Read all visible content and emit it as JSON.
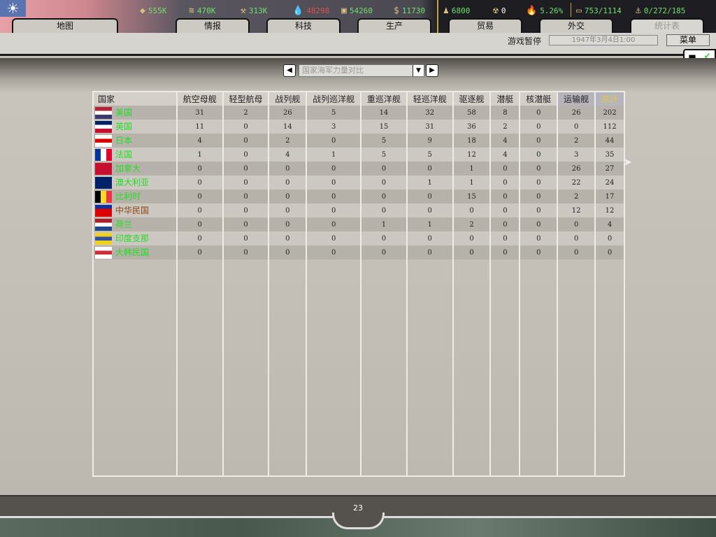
{
  "resources": [
    {
      "icon": "energy-icon",
      "value": "555K",
      "color": "#6ee06e"
    },
    {
      "icon": "metal-icon",
      "value": "470K",
      "color": "#6ee06e"
    },
    {
      "icon": "rare-materials-icon",
      "value": "313K",
      "color": "#6ee06e"
    },
    {
      "icon": "oil-icon",
      "value": "48298",
      "color": "#e05050"
    },
    {
      "icon": "supplies-icon",
      "value": "54260",
      "color": "#6ee06e"
    },
    {
      "icon": "money-icon",
      "value": "11730",
      "color": "#6ee06e"
    },
    {
      "icon": "manpower-icon",
      "value": "6800",
      "color": "#6ee06e"
    },
    {
      "icon": "nuclear-icon",
      "value": "0",
      "color": "#ffffff"
    },
    {
      "icon": "dissent-icon",
      "value": "5.26%",
      "color": "#6ee06e"
    },
    {
      "icon": "transport-icon",
      "value": "753/1114",
      "color": "#6ee06e"
    },
    {
      "icon": "convoy-icon",
      "value": "0/272/185",
      "color": "#6ee06e"
    }
  ],
  "tabs": [
    {
      "label": "地图"
    },
    {
      "label": "情报"
    },
    {
      "label": "科技"
    },
    {
      "label": "生产"
    },
    {
      "label": "贸易"
    },
    {
      "label": "外交"
    },
    {
      "label": "统计表",
      "active": true
    }
  ],
  "status": {
    "paused": "游戏暂停",
    "date": "1947年3月4日1:00",
    "menu": "菜单"
  },
  "selector": {
    "value": "国家海军力量对比"
  },
  "table": {
    "headers": [
      "国家",
      "航空母舰",
      "轻型航母",
      "战列舰",
      "战列巡洋舰",
      "重巡洋舰",
      "轻巡洋舰",
      "驱逐舰",
      "潜艇",
      "核潜艇",
      "运输舰",
      "总计"
    ],
    "rows": [
      {
        "country": "美国",
        "flag": [
          "#b22234",
          "#fff",
          "#3c3b6e"
        ],
        "color": "#22dd22",
        "values": [
          31,
          2,
          26,
          5,
          14,
          32,
          58,
          8,
          0,
          26,
          202
        ]
      },
      {
        "country": "英国",
        "flag": [
          "#012169",
          "#fff",
          "#c8102e"
        ],
        "color": "#22dd22",
        "values": [
          11,
          0,
          14,
          3,
          15,
          31,
          36,
          2,
          0,
          0,
          112
        ]
      },
      {
        "country": "日本",
        "flag": [
          "#fff",
          "#d00",
          "#fff"
        ],
        "color": "#22dd22",
        "values": [
          4,
          0,
          2,
          0,
          5,
          9,
          18,
          4,
          0,
          2,
          44
        ]
      },
      {
        "country": "法国",
        "flag": [
          "#0033a0",
          "#fff",
          "#e4002b"
        ],
        "color": "#22dd22",
        "values": [
          1,
          0,
          4,
          1,
          5,
          5,
          12,
          4,
          0,
          3,
          35
        ]
      },
      {
        "country": "加拿大",
        "flag": [
          "#c8102e",
          "#c8102e",
          "#c8102e"
        ],
        "color": "#22dd22",
        "values": [
          0,
          0,
          0,
          0,
          0,
          0,
          1,
          0,
          0,
          26,
          27
        ]
      },
      {
        "country": "澳大利亚",
        "flag": [
          "#012169",
          "#012169",
          "#012169"
        ],
        "color": "#22dd22",
        "values": [
          0,
          0,
          0,
          0,
          0,
          1,
          1,
          0,
          0,
          22,
          24
        ]
      },
      {
        "country": "比利时",
        "flag": [
          "#000",
          "#fdda24",
          "#ef3340"
        ],
        "color": "#22dd22",
        "values": [
          0,
          0,
          0,
          0,
          0,
          0,
          15,
          0,
          0,
          2,
          17
        ]
      },
      {
        "country": "中华民国",
        "flag": [
          "#1030a0",
          "#d00",
          "#d00"
        ],
        "color": "#8b4513",
        "values": [
          0,
          0,
          0,
          0,
          0,
          0,
          0,
          0,
          0,
          12,
          12
        ]
      },
      {
        "country": "荷兰",
        "flag": [
          "#ae1c28",
          "#fff",
          "#21468b"
        ],
        "color": "#22dd22",
        "values": [
          0,
          0,
          0,
          0,
          1,
          1,
          2,
          0,
          0,
          0,
          4
        ]
      },
      {
        "country": "印度支那",
        "flag": [
          "#f0d020",
          "#3050a0",
          "#f0d020"
        ],
        "color": "#22dd22",
        "values": [
          0,
          0,
          0,
          0,
          0,
          0,
          0,
          0,
          0,
          0,
          0
        ]
      },
      {
        "country": "大韩民国",
        "flag": [
          "#fff",
          "#cd2e3a",
          "#fff"
        ],
        "color": "#22dd22",
        "values": [
          0,
          0,
          0,
          0,
          0,
          0,
          0,
          0,
          0,
          0,
          0
        ]
      }
    ]
  },
  "footer": {
    "page": "23"
  }
}
